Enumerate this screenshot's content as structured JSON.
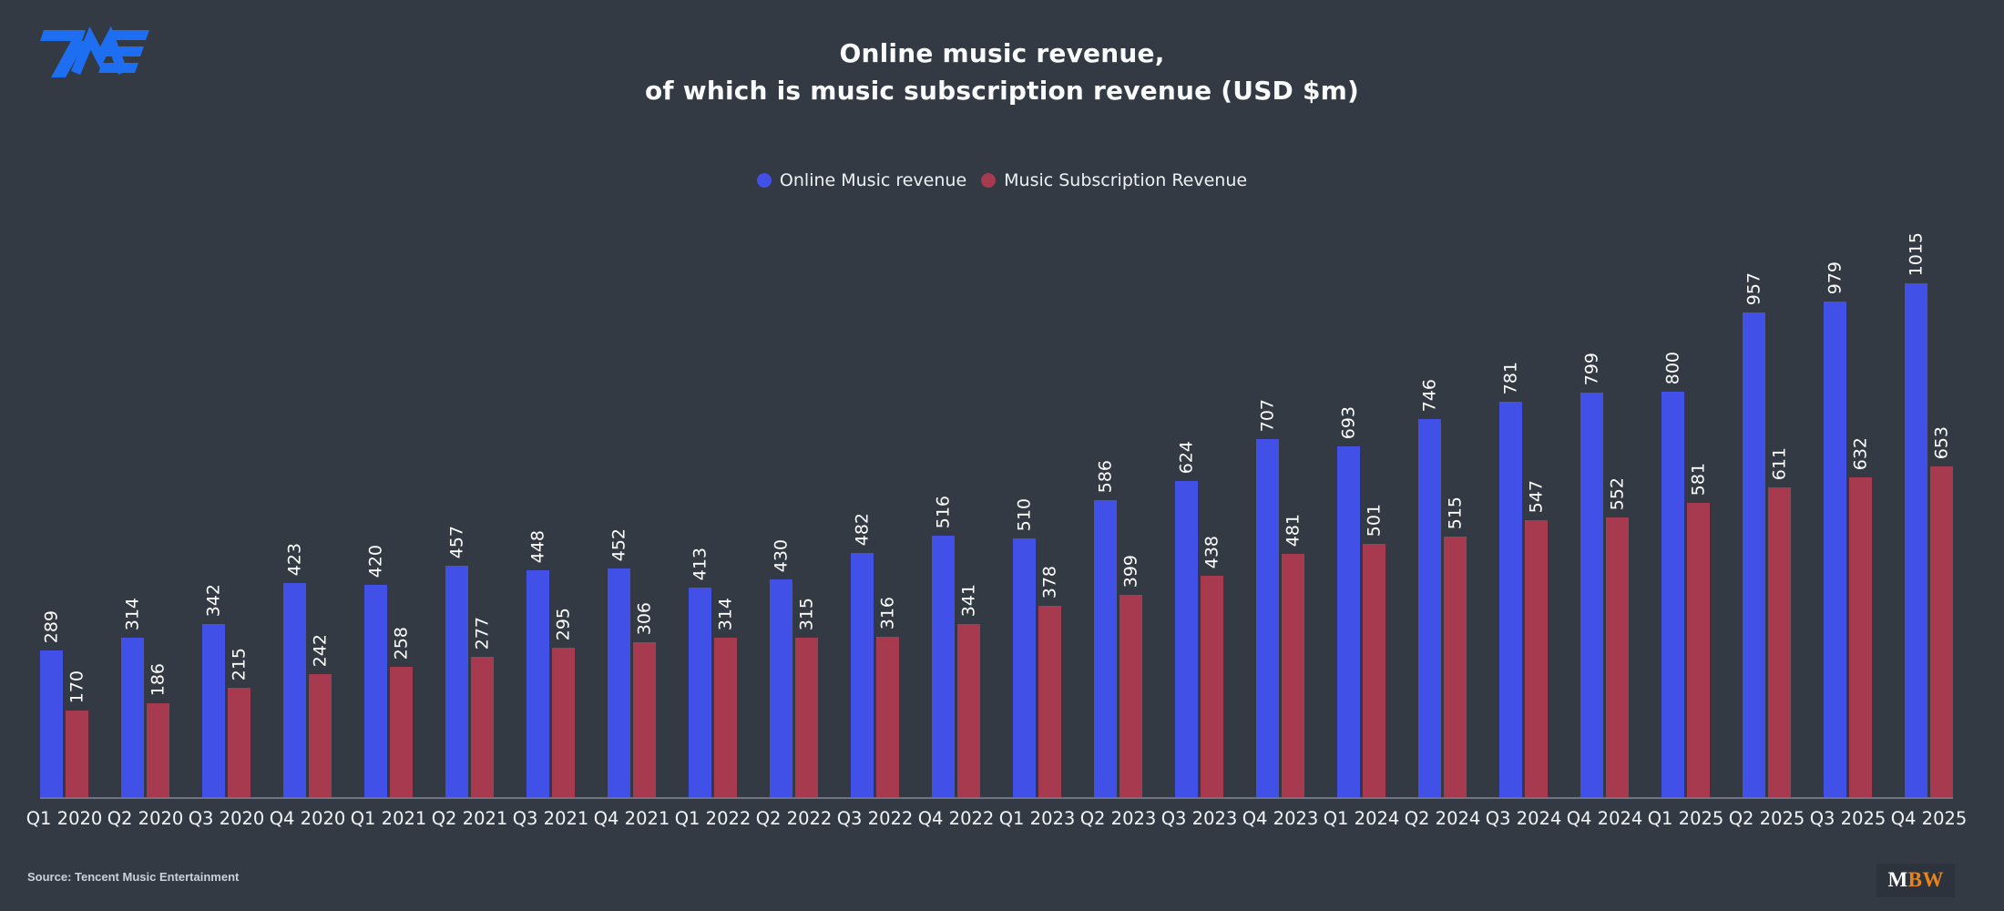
{
  "page": {
    "background": "#333a43"
  },
  "logo": {
    "name": "TME",
    "color": "#1d6ef0"
  },
  "header": {
    "title_line1": "Online music revenue,",
    "title_line2": "of which is music subscription revenue (USD $m)"
  },
  "legend": [
    {
      "label": "Online Music revenue",
      "color": "#4150e6"
    },
    {
      "label": "Music Subscription Revenue",
      "color": "#a73a4e"
    }
  ],
  "footer": {
    "source": "Source: Tencent Music Entertainment",
    "brand_m": "M",
    "brand_bw": "BW"
  },
  "chart_data": {
    "type": "bar",
    "title": "Online music revenue, of which is music subscription revenue (USD $m)",
    "categories": [
      "Q1 2020",
      "Q2 2020",
      "Q3 2020",
      "Q4 2020",
      "Q1 2021",
      "Q2 2021",
      "Q3 2021",
      "Q4 2021",
      "Q1 2022",
      "Q2 2022",
      "Q3 2022",
      "Q4 2022",
      "Q1 2023",
      "Q2 2023",
      "Q3 2023",
      "Q4 2023",
      "Q1 2024",
      "Q2 2024",
      "Q3 2024",
      "Q4 2024",
      "Q1 2025",
      "Q2 2025",
      "Q3 2025",
      "Q4 2025"
    ],
    "series": [
      {
        "name": "Online Music revenue",
        "color": "#4150e6",
        "values": [
          289,
          314,
          342,
          423,
          420,
          457,
          448,
          452,
          413,
          430,
          482,
          516,
          510,
          586,
          624,
          707,
          693,
          746,
          781,
          799,
          800,
          957,
          979,
          1015
        ]
      },
      {
        "name": "Music Subscription Revenue",
        "color": "#a73a4e",
        "values": [
          170,
          186,
          215,
          242,
          258,
          277,
          295,
          306,
          314,
          315,
          316,
          341,
          378,
          399,
          438,
          481,
          501,
          515,
          547,
          552,
          581,
          611,
          632,
          653
        ]
      }
    ],
    "xlabel": "",
    "ylabel": "",
    "ylim": [
      0,
      1020
    ],
    "grid": false,
    "legend_position": "top",
    "bar_labels": true,
    "bar_label_rotation": -90
  }
}
